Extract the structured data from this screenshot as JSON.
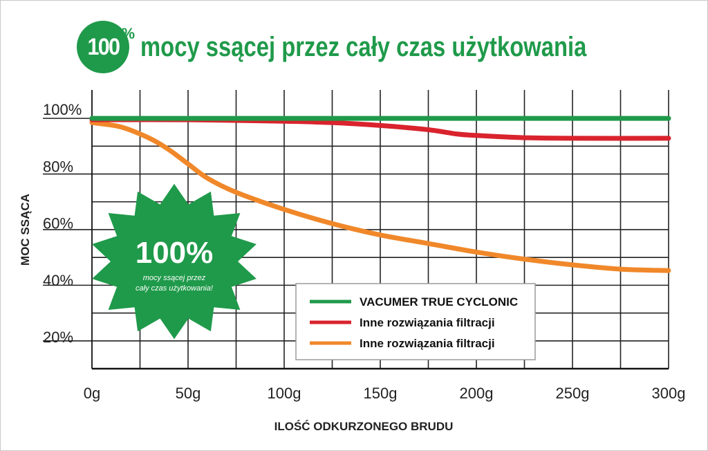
{
  "header": {
    "badge_number": "100",
    "badge_percent": "%",
    "title": "mocy ssącej przez cały czas użytkowania"
  },
  "colors": {
    "green": "#1f9a4a",
    "red": "#d9232d",
    "orange": "#f0882a",
    "grid": "#222222"
  },
  "starburst": {
    "big": "100%",
    "line1": "mocy ssącej przez",
    "line2": "cały czas użytkowania!"
  },
  "chart_data": {
    "type": "line",
    "title": "",
    "xlabel": "ILOŚĆ ODKURZONEGO BRUDU",
    "ylabel": "MOC SSĄCA",
    "xlim": [
      0,
      300
    ],
    "ylim": [
      12,
      110
    ],
    "x_ticks": [
      0,
      50,
      100,
      150,
      200,
      250,
      300
    ],
    "x_tick_labels": [
      "0g",
      "50g",
      "100g",
      "150g",
      "200g",
      "250g",
      "300g"
    ],
    "y_ticks": [
      20,
      40,
      60,
      80,
      100
    ],
    "y_tick_labels": [
      "20%",
      "40%",
      "60%",
      "80%",
      "100%"
    ],
    "grid": true,
    "legend_position": "bottom-right",
    "series": [
      {
        "name": "VACUMER TRUE CYCLONIC",
        "color": "#1f9a4a",
        "x": [
          0,
          50,
          100,
          150,
          200,
          250,
          300
        ],
        "y": [
          100,
          100,
          100,
          100,
          100,
          100,
          100
        ]
      },
      {
        "name": "Inne rozwiązania filtracji",
        "color": "#d9232d",
        "x": [
          0,
          50,
          100,
          125,
          150,
          175,
          190,
          200,
          225,
          250,
          300
        ],
        "y": [
          99.5,
          99.5,
          99,
          98.5,
          97.5,
          96,
          94.5,
          94,
          93.2,
          93,
          93
        ]
      },
      {
        "name": "Inne rozwiązania filtracji",
        "color": "#f0882a",
        "x": [
          0,
          15,
          30,
          40,
          50,
          60,
          75,
          100,
          125,
          150,
          175,
          200,
          225,
          250,
          275,
          300
        ],
        "y": [
          98.5,
          97,
          93,
          89,
          84,
          79,
          74,
          68,
          63,
          59,
          56,
          53,
          50.5,
          48.5,
          47,
          46.5
        ]
      }
    ]
  }
}
